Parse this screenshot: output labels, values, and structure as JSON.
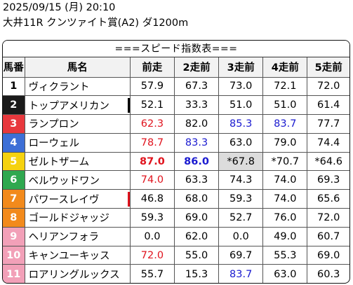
{
  "header": {
    "line1": "2025/09/15 (月) 20:10",
    "line2": "大井11R クンツァイト賞(A2) ダ1200m"
  },
  "table": {
    "title": "===スピード指数表===",
    "columns": [
      "馬番",
      "馬名",
      "前走",
      "2走前",
      "3走前",
      "4走前",
      "5走前"
    ],
    "number_colors": {
      "1": {
        "bg": "#ffffff",
        "fg": "#000000"
      },
      "2": {
        "bg": "#1a1a1a",
        "fg": "#ffffff"
      },
      "3": {
        "bg": "#e8383d",
        "fg": "#ffffff"
      },
      "4": {
        "bg": "#3d6fd6",
        "fg": "#ffffff"
      },
      "5": {
        "bg": "#f5d20f",
        "fg": "#ffffff"
      },
      "6": {
        "bg": "#2fa84f",
        "fg": "#ffffff"
      },
      "7": {
        "bg": "#f28a1c",
        "fg": "#ffffff"
      },
      "8": {
        "bg": "#f2a0b8",
        "fg": "#ffffff"
      }
    },
    "rows": [
      {
        "num": "1",
        "name": "ヴィクラント",
        "mark": null,
        "vals": [
          {
            "v": "57.9"
          },
          {
            "v": "67.3"
          },
          {
            "v": "73.0"
          },
          {
            "v": "72.1"
          },
          {
            "v": "72.0"
          }
        ]
      },
      {
        "num": "2",
        "name": "トップアメリカン",
        "mark": "#000000",
        "vals": [
          {
            "v": "52.1"
          },
          {
            "v": "33.3"
          },
          {
            "v": "51.0"
          },
          {
            "v": "51.0"
          },
          {
            "v": "61.4"
          }
        ]
      },
      {
        "num": "3",
        "name": "ランプロン",
        "mark": null,
        "vals": [
          {
            "v": "62.3",
            "c": "red"
          },
          {
            "v": "82.0"
          },
          {
            "v": "85.3",
            "c": "blue"
          },
          {
            "v": "83.7",
            "c": "blue"
          },
          {
            "v": "77.7"
          }
        ]
      },
      {
        "num": "4",
        "name": "ローウェル",
        "mark": null,
        "vals": [
          {
            "v": "78.7",
            "c": "red"
          },
          {
            "v": "83.3",
            "c": "blue"
          },
          {
            "v": "63.0"
          },
          {
            "v": "79.0"
          },
          {
            "v": "74.4"
          }
        ]
      },
      {
        "num": "5",
        "name": "ゼルトザーム",
        "mark": null,
        "vals": [
          {
            "v": "87.0",
            "c": "red",
            "b": true
          },
          {
            "v": "86.0",
            "c": "blue",
            "b": true
          },
          {
            "v": "*67.8",
            "s": true
          },
          {
            "v": "*70.7"
          },
          {
            "v": "*64.6"
          }
        ]
      },
      {
        "num": "6",
        "name": "ベルウッドワン",
        "mark": null,
        "vals": [
          {
            "v": "74.0",
            "c": "red"
          },
          {
            "v": "63.3"
          },
          {
            "v": "74.3"
          },
          {
            "v": "74.0"
          },
          {
            "v": "69.3"
          }
        ]
      },
      {
        "num": "7",
        "name": "パワースレイヴ",
        "mark": "#e0141e",
        "vals": [
          {
            "v": "46.8"
          },
          {
            "v": "68.0"
          },
          {
            "v": "59.3"
          },
          {
            "v": "74.0"
          },
          {
            "v": "65.6"
          }
        ]
      },
      {
        "num": "8",
        "name": "ゴールドジャッジ",
        "mark": null,
        "vals": [
          {
            "v": "59.3"
          },
          {
            "v": "69.0"
          },
          {
            "v": "52.7"
          },
          {
            "v": "76.0"
          },
          {
            "v": "72.0"
          }
        ]
      },
      {
        "num": "9",
        "name": "ヘリアンフォラ",
        "mark": null,
        "vals": [
          {
            "v": "0.0"
          },
          {
            "v": "62.0"
          },
          {
            "v": "0.0"
          },
          {
            "v": "49.0"
          },
          {
            "v": "60.7"
          }
        ]
      },
      {
        "num": "10",
        "name": "キャンユーキッス",
        "mark": null,
        "vals": [
          {
            "v": "72.0",
            "c": "red"
          },
          {
            "v": "55.0"
          },
          {
            "v": "69.7"
          },
          {
            "v": "55.3"
          },
          {
            "v": "69.0"
          }
        ]
      },
      {
        "num": "11",
        "name": "ロアリングルックス",
        "mark": null,
        "vals": [
          {
            "v": "55.7"
          },
          {
            "v": "15.3"
          },
          {
            "v": "83.7",
            "c": "blue"
          },
          {
            "v": "63.0"
          },
          {
            "v": "60.3"
          }
        ]
      }
    ],
    "waku": [
      "1",
      "2",
      "3",
      "4",
      "5",
      "6",
      "7",
      "7",
      "8",
      "8",
      "8"
    ]
  }
}
